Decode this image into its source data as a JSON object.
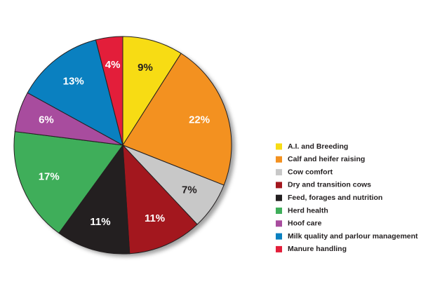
{
  "chart_data": {
    "type": "pie",
    "categories": [
      "A.I. and Breeding",
      "Calf and heifer raising",
      "Cow comfort",
      "Dry and transition cows",
      "Feed, forages and nutrition",
      "Herd health",
      "Hoof care",
      "Milk quality and parlour management",
      "Manure handling"
    ],
    "values": [
      9,
      22,
      7,
      11,
      11,
      17,
      6,
      13,
      4
    ],
    "value_labels": [
      "9%",
      "22%",
      "7%",
      "11%",
      "11%",
      "17%",
      "6%",
      "13%",
      "4%"
    ],
    "colors": [
      "#f7dc14",
      "#f39120",
      "#c8c8c8",
      "#a3171e",
      "#231f20",
      "#3fae5a",
      "#a84c9e",
      "#0a80c0",
      "#e31e3a"
    ],
    "legend": "right"
  }
}
